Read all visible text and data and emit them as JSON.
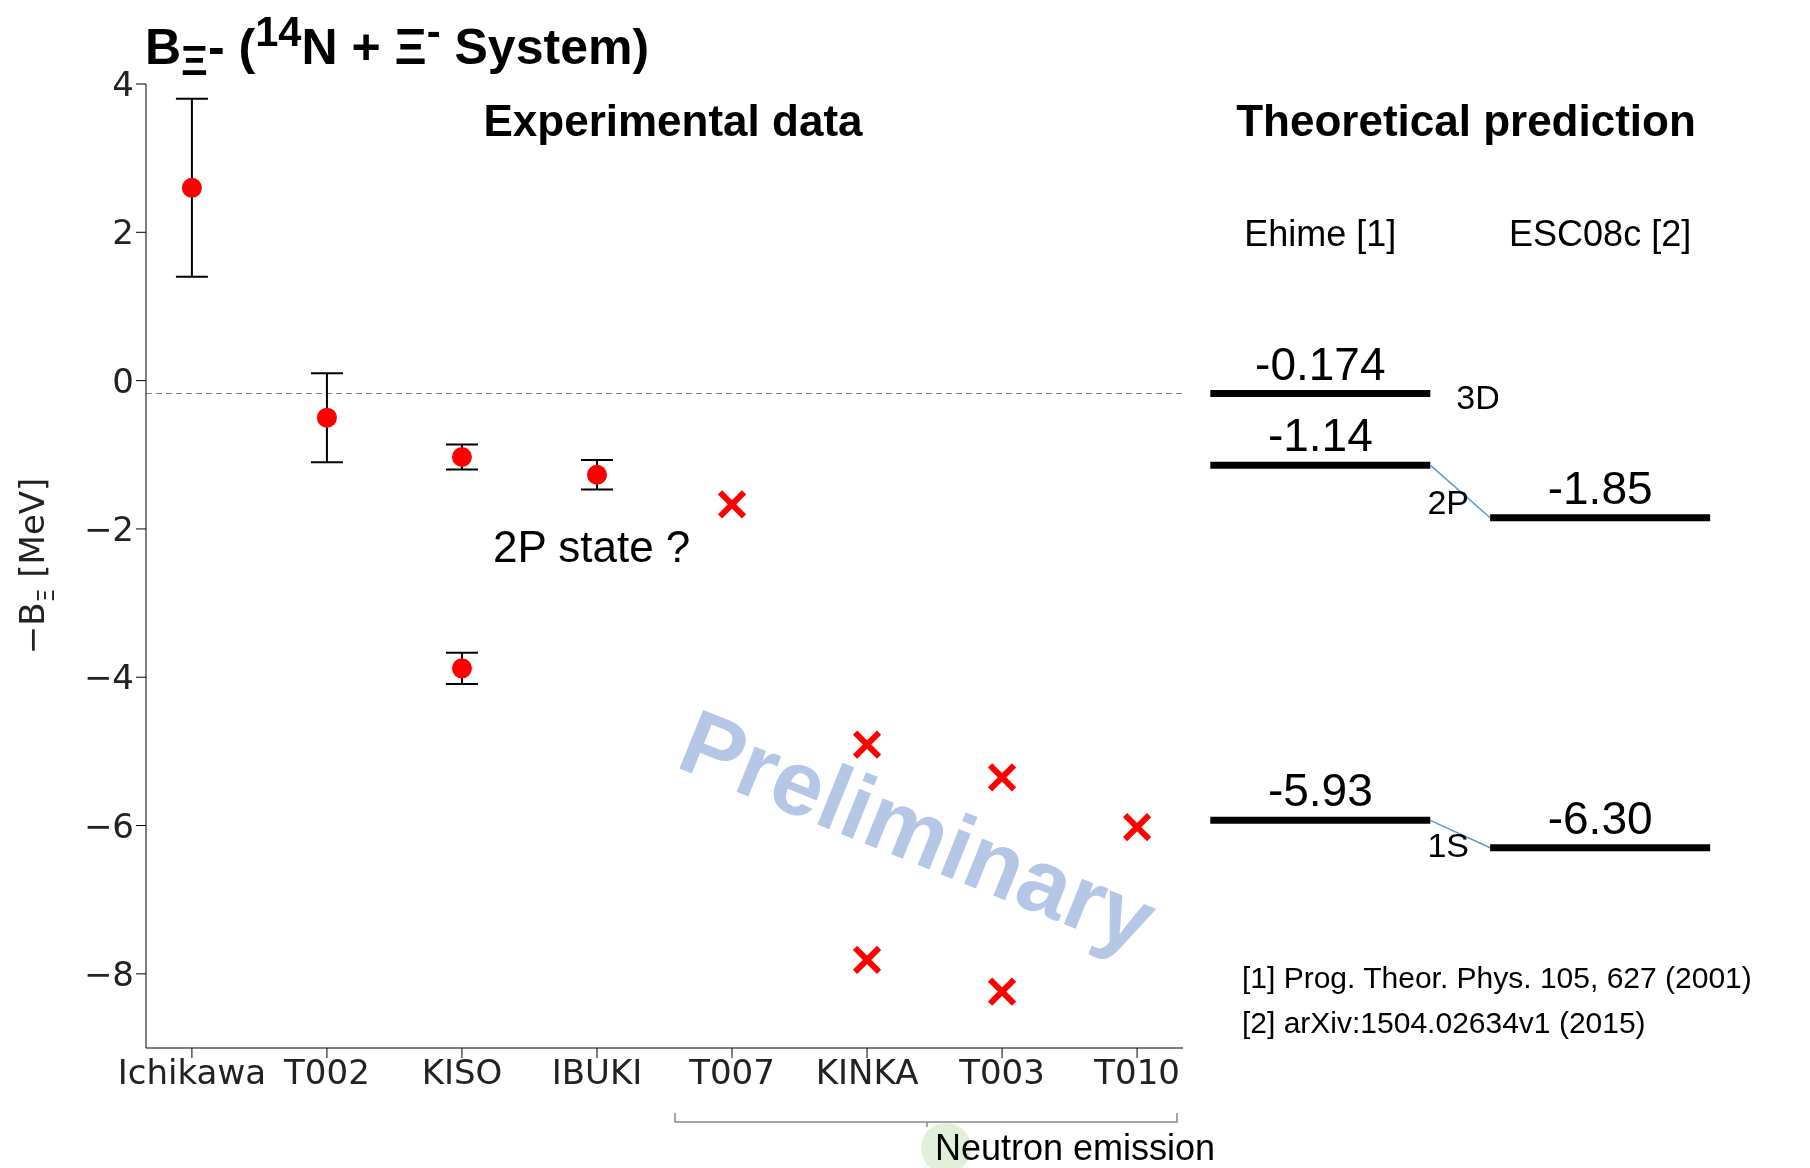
{
  "chart_data": [
    {
      "type": "scatter",
      "title": "B$_{Ξ}$-  ($^{14}$N + Ξ$^{-}$  System)",
      "ylabel": "−B$_{Ξ}$ [MeV]",
      "categories": [
        "Ichikawa",
        "T002",
        "KISO",
        "IBUKI",
        "T007",
        "KINKA",
        "T003",
        "T010"
      ],
      "ylim": [
        -9,
        4
      ],
      "yticks": [
        -8,
        -6,
        -4,
        -2,
        0,
        2,
        4
      ],
      "series": [
        {
          "marker": "circle",
          "color": "#ff0000",
          "values": [
            2.6,
            -0.5,
            -1.03,
            -1.27,
            null,
            null,
            null,
            null
          ],
          "errors": [
            1.2,
            0.6,
            0.17,
            0.2,
            null,
            null,
            null,
            null
          ]
        },
        {
          "marker": "circle",
          "color": "#ff0000",
          "values": [
            null,
            null,
            -3.88,
            null,
            null,
            null,
            null,
            null
          ],
          "errors": [
            null,
            null,
            0.21,
            null,
            null,
            null,
            null,
            null
          ]
        },
        {
          "marker": "cross",
          "color": "#ff0000",
          "values": [
            null,
            null,
            null,
            null,
            -1.67,
            -4.91,
            -5.35,
            -6.02
          ]
        },
        {
          "marker": "cross",
          "color": "#ff0000",
          "values": [
            null,
            null,
            null,
            null,
            null,
            -7.81,
            -8.24,
            null
          ]
        }
      ],
      "ref_lines": [
        {
          "axis": "y",
          "value": -0.174,
          "color": "#808080",
          "line_style": "dashed"
        }
      ],
      "annotations": [
        "Experimental data",
        "2P state ?",
        "Preliminary",
        "Neutron emission"
      ]
    },
    {
      "type": "other",
      "title": "Theoretical prediction",
      "categories": [
        "Ehime [1]",
        "ESC08c [2]"
      ],
      "series": [
        {
          "name": "3D",
          "color": "#000000",
          "values": [
            -0.174,
            null
          ],
          "value_labels": [
            "-0.174",
            null
          ]
        },
        {
          "name": "2P",
          "color": "#000000",
          "values": [
            -1.14,
            -1.85
          ],
          "value_labels": [
            "-1.14",
            "-1.85"
          ]
        },
        {
          "name": "1S",
          "color": "#000000",
          "values": [
            -5.93,
            -6.3
          ],
          "value_labels": [
            "-5.93",
            "-6.30"
          ]
        }
      ],
      "annotations": [
        "[1] Prog. Theor. Phys. 105, 627 (2001)",
        "[2] arXiv:1504.02634v1 (2015)"
      ]
    }
  ]
}
